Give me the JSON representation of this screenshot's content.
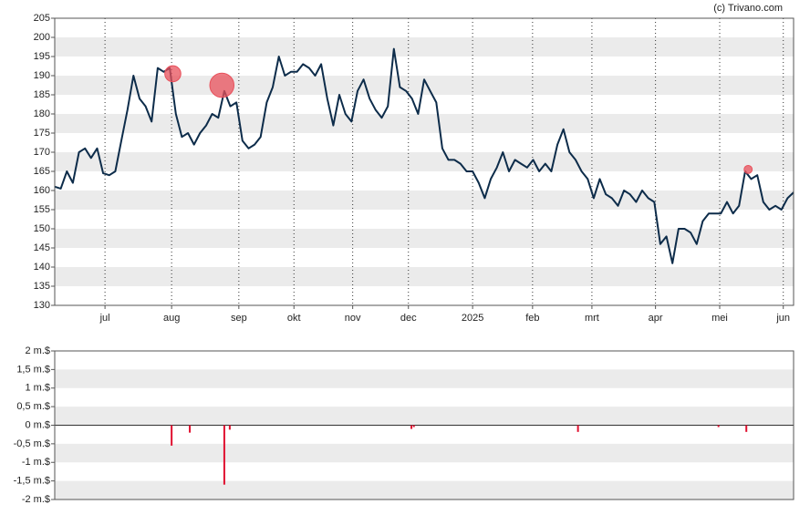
{
  "chart_data": [
    {
      "type": "line",
      "source": "(c) Trivano.com",
      "series": [
        {
          "color": "#0d2c4a",
          "values": [
            161,
            160.5,
            165,
            162,
            170,
            171,
            168.5,
            171,
            164.5,
            164,
            165,
            173,
            181,
            190,
            184,
            182,
            178,
            192,
            191,
            192,
            180,
            174,
            175,
            172,
            175,
            177,
            180,
            179,
            186,
            182,
            183,
            173,
            171,
            172,
            174,
            183,
            187,
            195,
            190,
            191,
            191,
            193,
            192,
            190,
            193,
            184,
            177,
            185,
            180,
            178,
            186,
            189,
            184,
            181,
            179,
            182,
            197,
            187,
            186,
            184,
            180,
            189,
            186,
            183,
            171,
            168,
            168,
            167,
            165,
            165,
            162,
            158,
            163,
            166,
            170,
            165,
            168,
            167,
            166,
            168,
            165,
            167,
            165,
            172,
            176,
            170,
            168,
            165,
            163,
            158,
            163,
            159,
            158,
            156,
            160,
            159,
            157,
            160,
            158,
            157,
            146,
            148,
            141,
            150,
            150,
            149,
            146,
            152,
            154,
            154,
            154,
            157,
            154,
            156,
            165,
            163,
            164,
            157,
            155,
            156,
            155,
            158,
            159.5
          ]
        }
      ],
      "markers": {
        "color": "#e8505b",
        "x": [
          19.5,
          27.6,
          114.5
        ],
        "values": [
          190.5,
          187.5,
          165.5
        ],
        "sizes": [
          0.55,
          1.6,
          0.05
        ]
      },
      "xlim": [
        0,
        122
      ],
      "xticks": [
        {
          "value": 8.3,
          "label": "jul"
        },
        {
          "value": 19.3,
          "label": "aug"
        },
        {
          "value": 30.4,
          "label": "sep"
        },
        {
          "value": 39.5,
          "label": "okt"
        },
        {
          "value": 49.2,
          "label": "nov"
        },
        {
          "value": 58.4,
          "label": "dec"
        },
        {
          "value": 69,
          "label": "2025"
        },
        {
          "value": 78.9,
          "label": "feb"
        },
        {
          "value": 88.7,
          "label": "mrt"
        },
        {
          "value": 99.2,
          "label": "apr"
        },
        {
          "value": 109.8,
          "label": "mei"
        },
        {
          "value": 120.3,
          "label": "jun"
        }
      ],
      "ylim": [
        130,
        205
      ],
      "yticks": [
        130,
        135,
        140,
        145,
        150,
        155,
        160,
        165,
        170,
        175,
        180,
        185,
        190,
        195,
        200,
        205
      ],
      "grid": true
    },
    {
      "type": "bar",
      "color": "#e0102f",
      "x": [
        19.3,
        22.3,
        28,
        28.9,
        58.9,
        59.3,
        86.4,
        109.6,
        114.2
      ],
      "values": [
        -0.55,
        -0.2,
        -1.6,
        -0.12,
        -0.1,
        -0.05,
        -0.18,
        -0.05,
        -0.18
      ],
      "xlim": [
        0,
        122
      ],
      "ylim": [
        -2,
        2
      ],
      "yticks": [
        {
          "value": -2,
          "label": "-2 m.$"
        },
        {
          "value": -1.5,
          "label": "-1,5 m.$"
        },
        {
          "value": -1,
          "label": "-1 m.$"
        },
        {
          "value": -0.5,
          "label": "-0,5 m.$"
        },
        {
          "value": 0,
          "label": "0 m.$"
        },
        {
          "value": 0.5,
          "label": "0,5 m.$"
        },
        {
          "value": 1,
          "label": "1 m.$"
        },
        {
          "value": 1.5,
          "label": "1,5 m.$"
        },
        {
          "value": 2,
          "label": "2 m.$"
        }
      ],
      "grid": true
    }
  ]
}
